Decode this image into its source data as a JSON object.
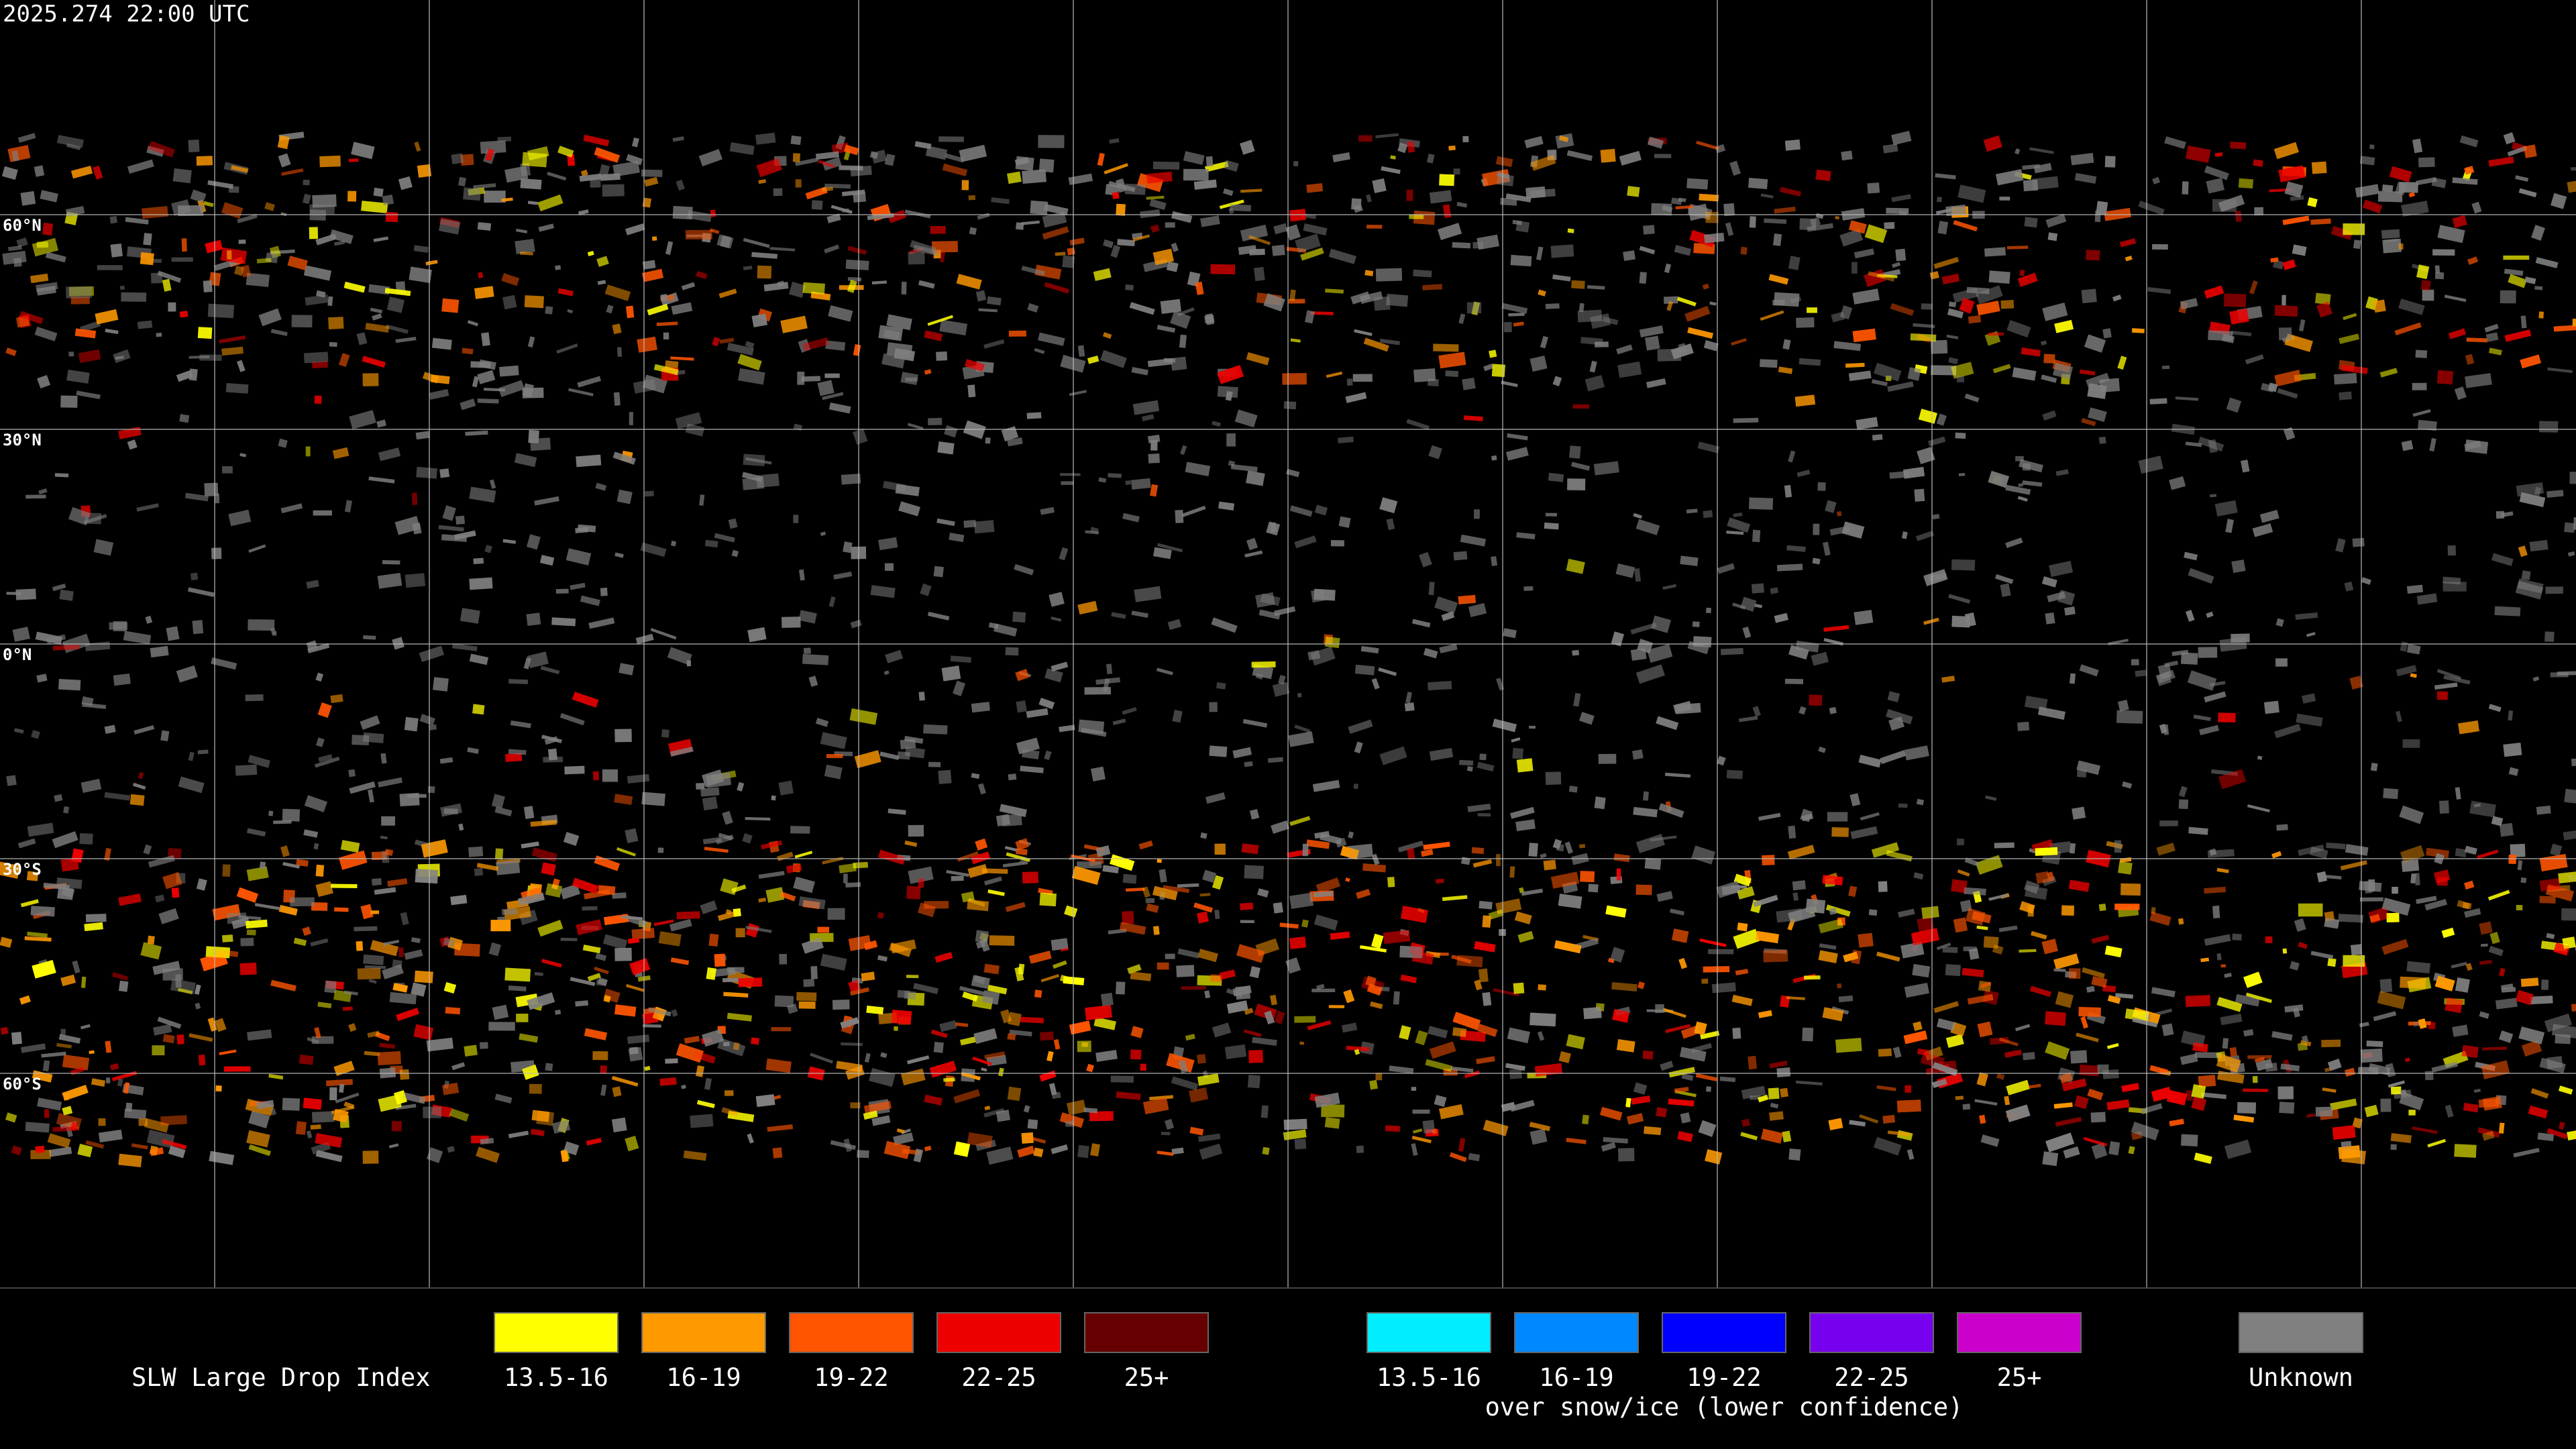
{
  "timestamp": "2025.274 22:00 UTC",
  "latitude_labels": [
    "60°N",
    "30°N",
    "0°N",
    "30°S",
    "60°S"
  ],
  "legend": {
    "title": "SLW Large Drop Index",
    "groups": [
      {
        "items": [
          {
            "label": "13.5-16",
            "color": "#ffff00"
          },
          {
            "label": "16-19",
            "color": "#ff9900"
          },
          {
            "label": "19-22",
            "color": "#ff5500"
          },
          {
            "label": "22-25",
            "color": "#ee0000"
          },
          {
            "label": "25+",
            "color": "#660000"
          }
        ]
      },
      {
        "items": [
          {
            "label": "13.5-16",
            "color": "#00eeff"
          },
          {
            "label": "16-19",
            "color": "#0088ff"
          },
          {
            "label": "19-22",
            "color": "#0000ff"
          },
          {
            "label": "22-25",
            "color": "#7700ee"
          },
          {
            "label": "25+",
            "color": "#cc00cc"
          }
        ],
        "note": "over snow/ice (lower confidence)"
      }
    ],
    "unknown": {
      "label": "Unknown",
      "color": "#808080"
    }
  }
}
